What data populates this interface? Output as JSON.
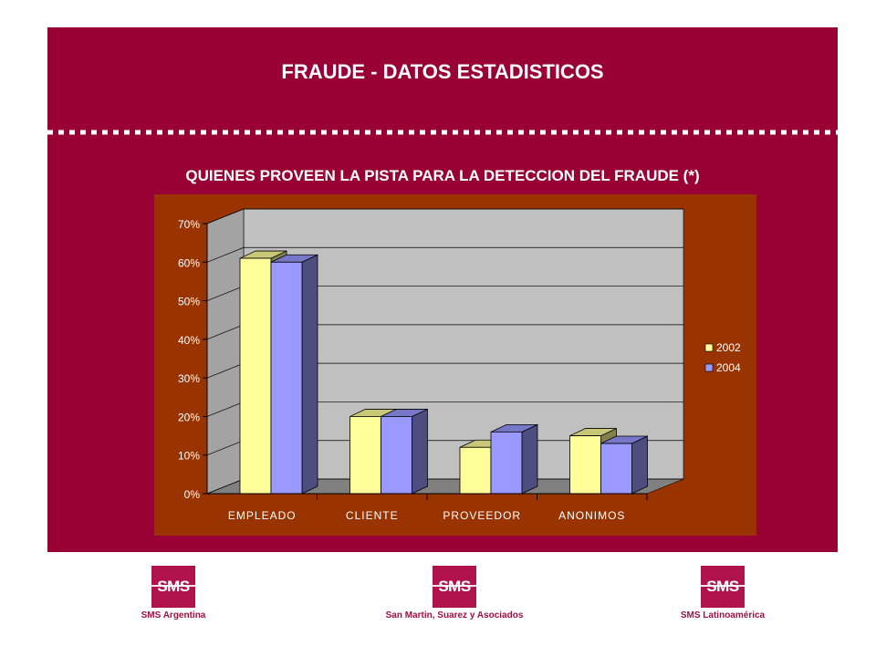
{
  "slide": {
    "title": "FRAUDE - DATOS ESTADISTICOS",
    "subtitle": "QUIENES PROVEEN LA PISTA PARA LA DETECCION DEL FRAUDE (*)",
    "background": "#990033",
    "chart_panel_color": "#993300"
  },
  "chart_data": {
    "type": "bar",
    "style": "3d-clustered-column",
    "categories": [
      "EMPLEADO",
      "CLIENTE",
      "PROVEEDOR",
      "ANONIMOS"
    ],
    "series": [
      {
        "name": "2002",
        "values": [
          61,
          20,
          12,
          15
        ],
        "color": "#ffff99"
      },
      {
        "name": "2004",
        "values": [
          60,
          20,
          16,
          13
        ],
        "color": "#9999ff"
      }
    ],
    "yticks": [
      "0%",
      "10%",
      "20%",
      "30%",
      "40%",
      "50%",
      "60%",
      "70%"
    ],
    "ylim": [
      0,
      70
    ],
    "grid": true,
    "legend": "right",
    "plot_background": "#c0c0c0",
    "floor_color": "#808080"
  },
  "logos": [
    {
      "mark": "SMS",
      "caption": "SMS Argentina"
    },
    {
      "mark": "SMS",
      "caption": "San Martin, Suarez y Asociados"
    },
    {
      "mark": "SMS",
      "caption": "SMS Latinoamérica"
    }
  ]
}
